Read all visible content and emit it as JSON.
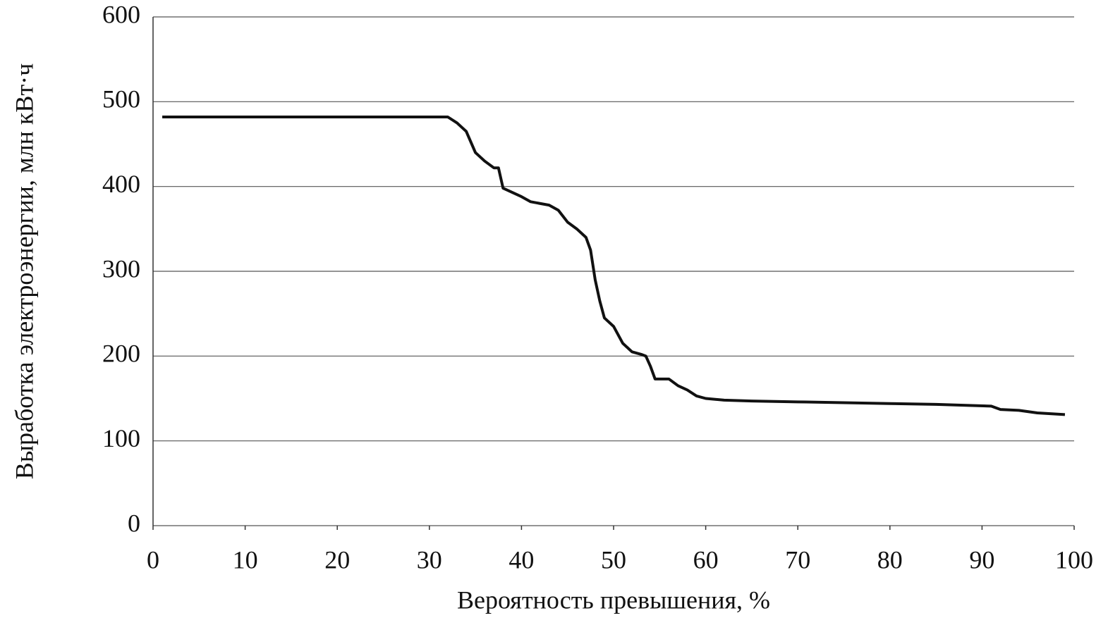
{
  "chart_data": {
    "type": "line",
    "x_label": "Вероятность превышения, %",
    "y_label": "Выработка электроэнергии, млн кВт·ч",
    "x": [
      1,
      32,
      33,
      34,
      35,
      36,
      37,
      37.5,
      38,
      39,
      40,
      41,
      42,
      43,
      44,
      45,
      46,
      47,
      47.5,
      48,
      48.5,
      49,
      50,
      51,
      52,
      53,
      53.5,
      54,
      54.5,
      56,
      57,
      58,
      59,
      60,
      62,
      65,
      70,
      75,
      80,
      85,
      88,
      91,
      92,
      94,
      96,
      99
    ],
    "series": [
      {
        "name": "Выработка",
        "color": "#111111",
        "values": [
          482,
          482,
          475,
          465,
          440,
          430,
          422,
          422,
          398,
          393,
          388,
          382,
          380,
          378,
          372,
          358,
          350,
          340,
          325,
          290,
          265,
          245,
          235,
          215,
          205,
          202,
          200,
          188,
          173,
          173,
          165,
          160,
          153,
          150,
          148,
          147,
          146,
          145,
          144,
          143,
          142,
          141,
          137,
          136,
          133,
          131
        ]
      }
    ],
    "xlim": [
      0,
      100
    ],
    "xticks": [
      0,
      10,
      20,
      30,
      40,
      50,
      60,
      70,
      80,
      90,
      100
    ],
    "ylim": [
      0,
      600
    ],
    "yticks": [
      0,
      100,
      200,
      300,
      400,
      500,
      600
    ],
    "grid": true
  }
}
